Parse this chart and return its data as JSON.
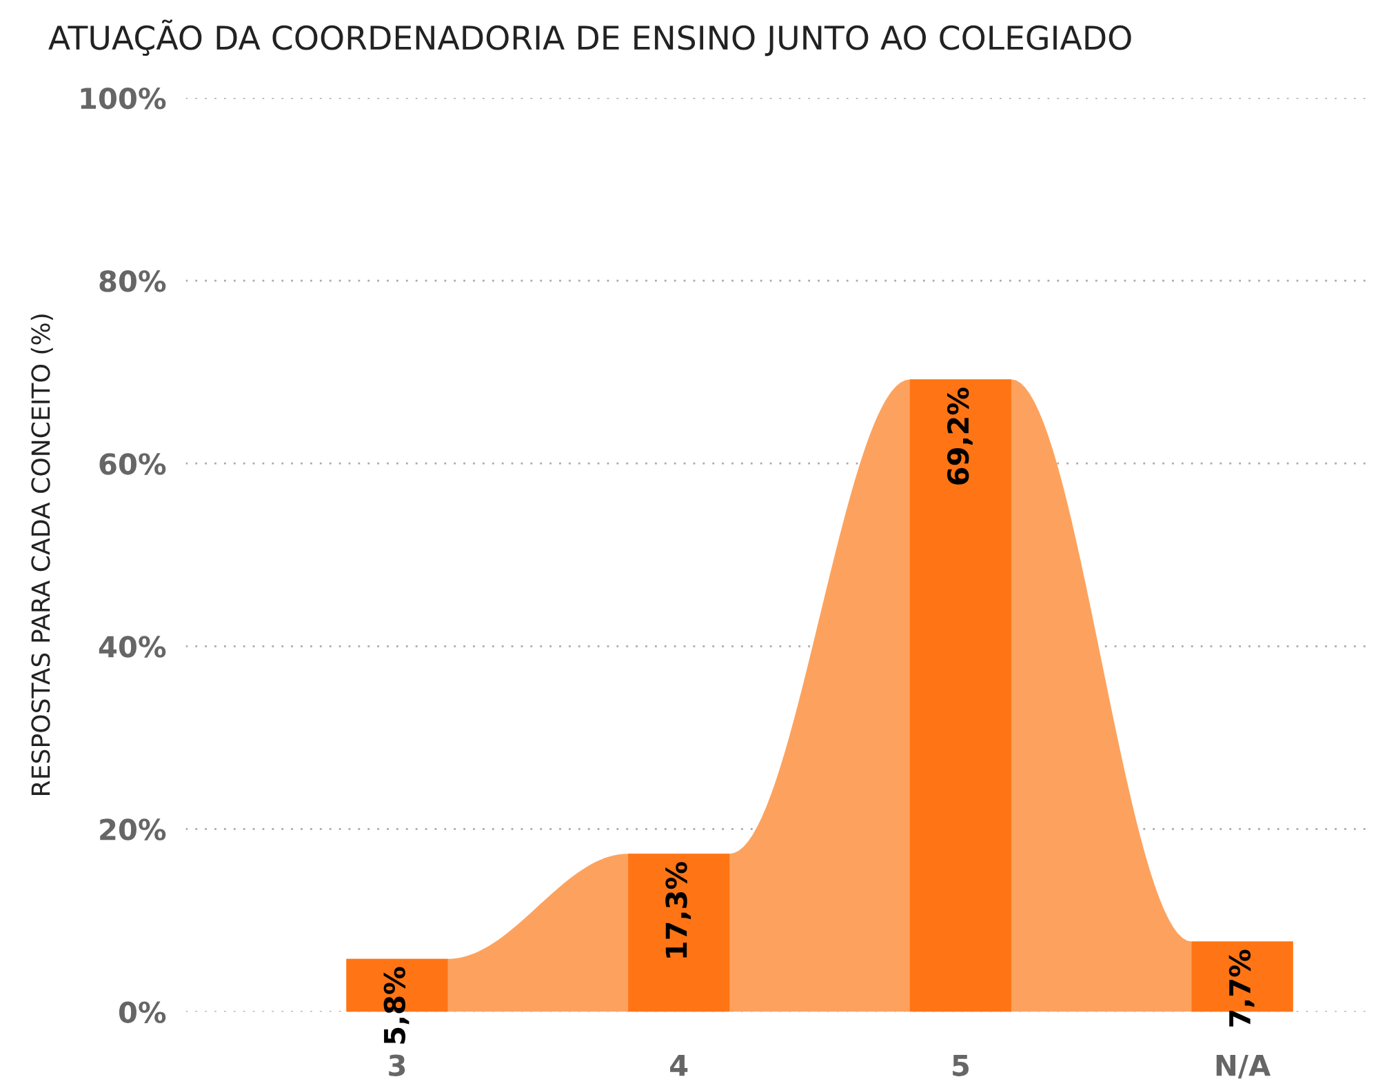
{
  "chart_data": {
    "type": "bar",
    "title": "ATUAÇÃO DA COORDENADORIA DE ENSINO JUNTO AO COLEGIADO",
    "ylabel": "RESPOSTAS PARA CADA CONCEITO (%)",
    "categories": [
      "3",
      "4",
      "5",
      "N/A"
    ],
    "series": [
      {
        "color": "#ff7515",
        "values": [
          5.8,
          17.3,
          69.2,
          7.7
        ],
        "value_labels": [
          "5,8%",
          "17,3%",
          "69,2%",
          "7,7%"
        ]
      }
    ],
    "ylim": [
      0,
      100
    ],
    "yticks": [
      {
        "value": 0,
        "label": "0%"
      },
      {
        "value": 20,
        "label": "20%"
      },
      {
        "value": 40,
        "label": "40%"
      },
      {
        "value": 60,
        "label": "60%"
      },
      {
        "value": 80,
        "label": "80%"
      },
      {
        "value": 100,
        "label": "100%"
      }
    ],
    "grid": "y",
    "legend": false
  }
}
